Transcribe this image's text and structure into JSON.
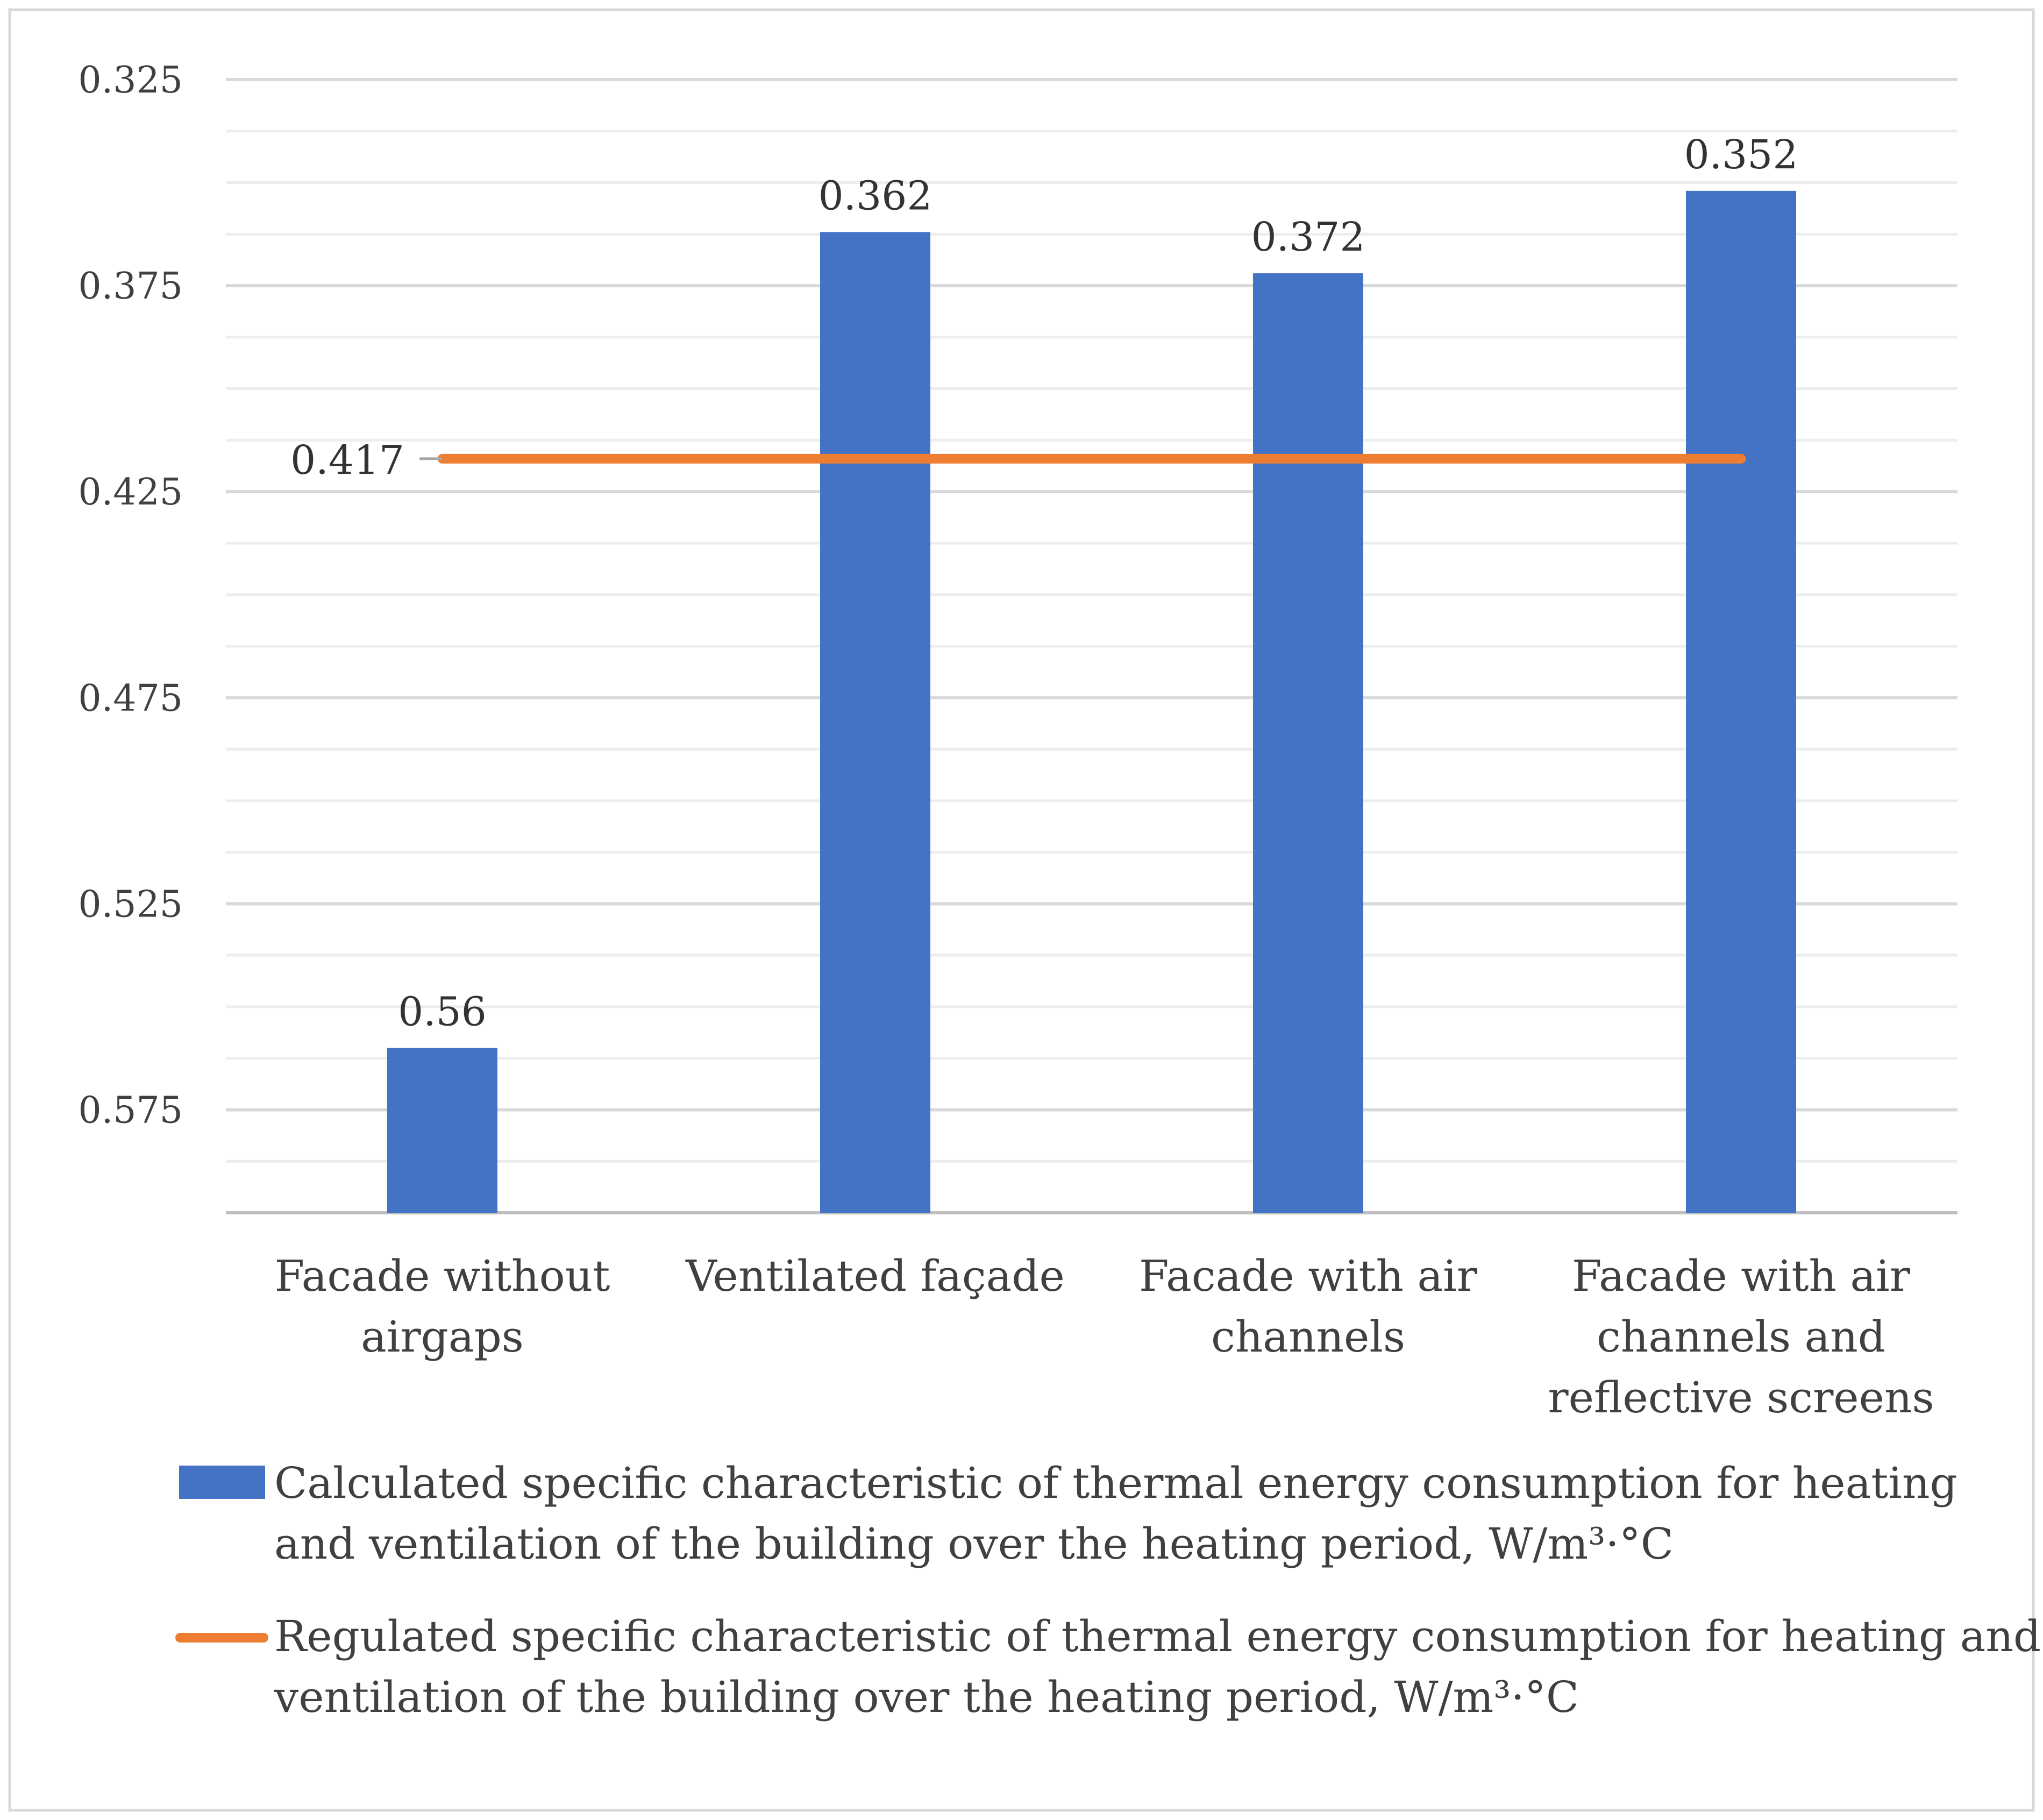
{
  "chart_data": {
    "type": "bar",
    "y_axis_inverted": true,
    "ylim": [
      0.325,
      0.6
    ],
    "y_ticks": [
      "0.325",
      "0.375",
      "0.425",
      "0.475",
      "0.525",
      "0.575"
    ],
    "y_tick_values": [
      0.325,
      0.375,
      0.425,
      0.475,
      0.525,
      0.575
    ],
    "categories": [
      [
        "Facade without",
        "airgaps"
      ],
      [
        "Ventilated façade"
      ],
      [
        "Facade with air",
        "channels"
      ],
      [
        "Facade with air",
        "channels and",
        "reflective screens"
      ]
    ],
    "series": [
      {
        "name": "Calculated specific characteristic of thermal energy consumption for heating and ventilation of the building over the heating period, W/m³·°C",
        "legend_lines": [
          "Calculated specific characteristic of thermal energy consumption for heating",
          "and ventilation of the building over the heating period, W/m³·°C"
        ],
        "kind": "bar",
        "color": "#4472C4",
        "values": [
          0.56,
          0.362,
          0.372,
          0.352
        ],
        "labels": [
          "0.56",
          "0.362",
          "0.372",
          "0.352"
        ]
      },
      {
        "name": "Regulated specific characteristic of thermal energy consumption for heating and ventilation of the building over the heating period, W/m³·°C",
        "legend_lines": [
          "Regulated specific characteristic of thermal energy consumption for heating and",
          "ventilation of the building over the heating period, W/m³·°C"
        ],
        "kind": "line",
        "color": "#ED7D31",
        "value": 0.417,
        "label": "0.417"
      }
    ],
    "grid": true,
    "legend_position": "bottom"
  }
}
